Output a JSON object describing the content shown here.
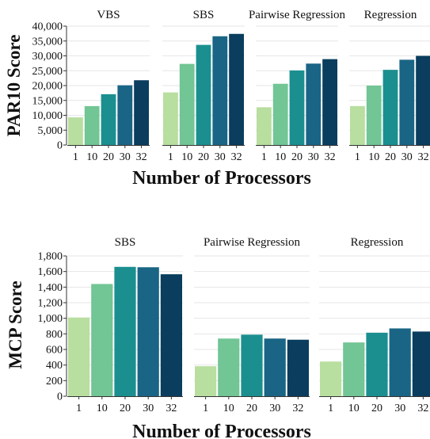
{
  "chart_data": [
    {
      "type": "bar",
      "ylabel": "PAR10 Score",
      "xlabel": "Number of Processors",
      "ylim": [
        0,
        40000
      ],
      "yticks": [
        0,
        5000,
        10000,
        15000,
        20000,
        25000,
        30000,
        35000,
        40000
      ],
      "ytick_labels": [
        "0",
        "5,000",
        "10,000",
        "15,000",
        "20,000",
        "25,000",
        "30,000",
        "35,000",
        "40,000"
      ],
      "categories": [
        "1",
        "10",
        "20",
        "30",
        "32"
      ],
      "colors": [
        "#b8dea0",
        "#72c594",
        "#1b8f8f",
        "#1a6585",
        "#0a3d5e"
      ],
      "grid": true,
      "panels": [
        {
          "title": "VBS",
          "values": [
            9300,
            13100,
            17100,
            20100,
            21800
          ]
        },
        {
          "title": "SBS",
          "values": [
            17700,
            27300,
            33700,
            36600,
            37400
          ]
        },
        {
          "title": "Pairwise Regression",
          "values": [
            12700,
            20600,
            25100,
            27400,
            28900
          ]
        },
        {
          "title": "Regression",
          "values": [
            13100,
            20000,
            25300,
            28700,
            30000
          ]
        }
      ]
    },
    {
      "type": "bar",
      "ylabel": "MCP Score",
      "xlabel": "Number of Processors",
      "ylim": [
        0,
        1800
      ],
      "yticks": [
        0,
        200,
        400,
        600,
        800,
        1000,
        1200,
        1400,
        1600,
        1800
      ],
      "ytick_labels": [
        "0",
        "200",
        "400",
        "600",
        "800",
        "1,000",
        "1,200",
        "1,400",
        "1,600",
        "1,800"
      ],
      "categories": [
        "1",
        "10",
        "20",
        "30",
        "32"
      ],
      "colors": [
        "#b8dea0",
        "#72c594",
        "#1b8f8f",
        "#1a6585",
        "#0a3d5e"
      ],
      "grid": true,
      "panels": [
        {
          "title": "SBS",
          "values": [
            1010,
            1440,
            1660,
            1655,
            1565
          ]
        },
        {
          "title": "Pairwise Regression",
          "values": [
            385,
            740,
            790,
            740,
            725
          ]
        },
        {
          "title": "Regression",
          "values": [
            445,
            690,
            815,
            870,
            830
          ]
        }
      ]
    }
  ]
}
